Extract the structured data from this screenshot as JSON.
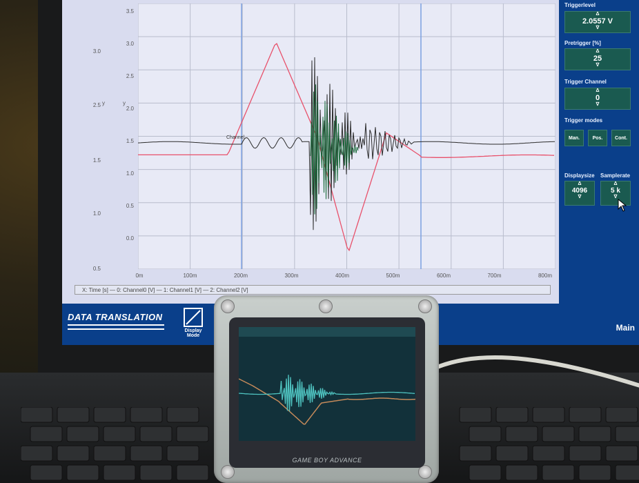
{
  "scope": {
    "y_ticks_inner": [
      "3.5",
      "3.0",
      "2.5",
      "2.0",
      "1.5",
      "1.0",
      "0.5",
      "0.0"
    ],
    "y_ticks_outer": [
      "3.0",
      "2.5",
      "1.5",
      "1.0",
      "0.5"
    ],
    "y_axis_label": "y",
    "x_ticks": [
      "0m",
      "100m",
      "200m",
      "300m",
      "400m",
      "500m",
      "600m",
      "700m",
      "800m"
    ],
    "legend": "X: Time [s]   —  0: Channel0 [V]   —  1: Channel1 [V]   —  2: Channel2 [V]",
    "cursor_label": "Channel"
  },
  "side_panel": {
    "trigger_level_label": "Triggerlevel",
    "trigger_level_value": "2.0557  V",
    "pretrigger_label": "Pretrigger [%]",
    "pretrigger_value": "25",
    "trigger_channel_label": "Trigger Channel",
    "trigger_channel_value": "0",
    "trigger_modes_label": "Trigger modes",
    "mode_buttons": [
      "Man.",
      "Pos.",
      "Cont."
    ],
    "displaysize_label": "Displaysize",
    "displaysize_value": "4096",
    "samplerate_label": "Samplerate",
    "samplerate_value": "5 k",
    "up_arrow": "Δ",
    "down_arrow": "∇"
  },
  "footer": {
    "brand": "DATA TRANSLATION",
    "display_mode_label_1": "Display",
    "display_mode_label_2": "Mode",
    "main_label": "Main"
  },
  "handheld": {
    "logo": "GAME BOY ADVANCE"
  },
  "colors": {
    "channel0": "#2a2a2a",
    "channel1": "#e8506a",
    "channel2": "#1a6a3a",
    "screen_bg": "#0a3f8a",
    "panel_box": "#1a5a50",
    "gba_cyan": "#4fc3c0",
    "gba_orange": "#c58a5a"
  }
}
